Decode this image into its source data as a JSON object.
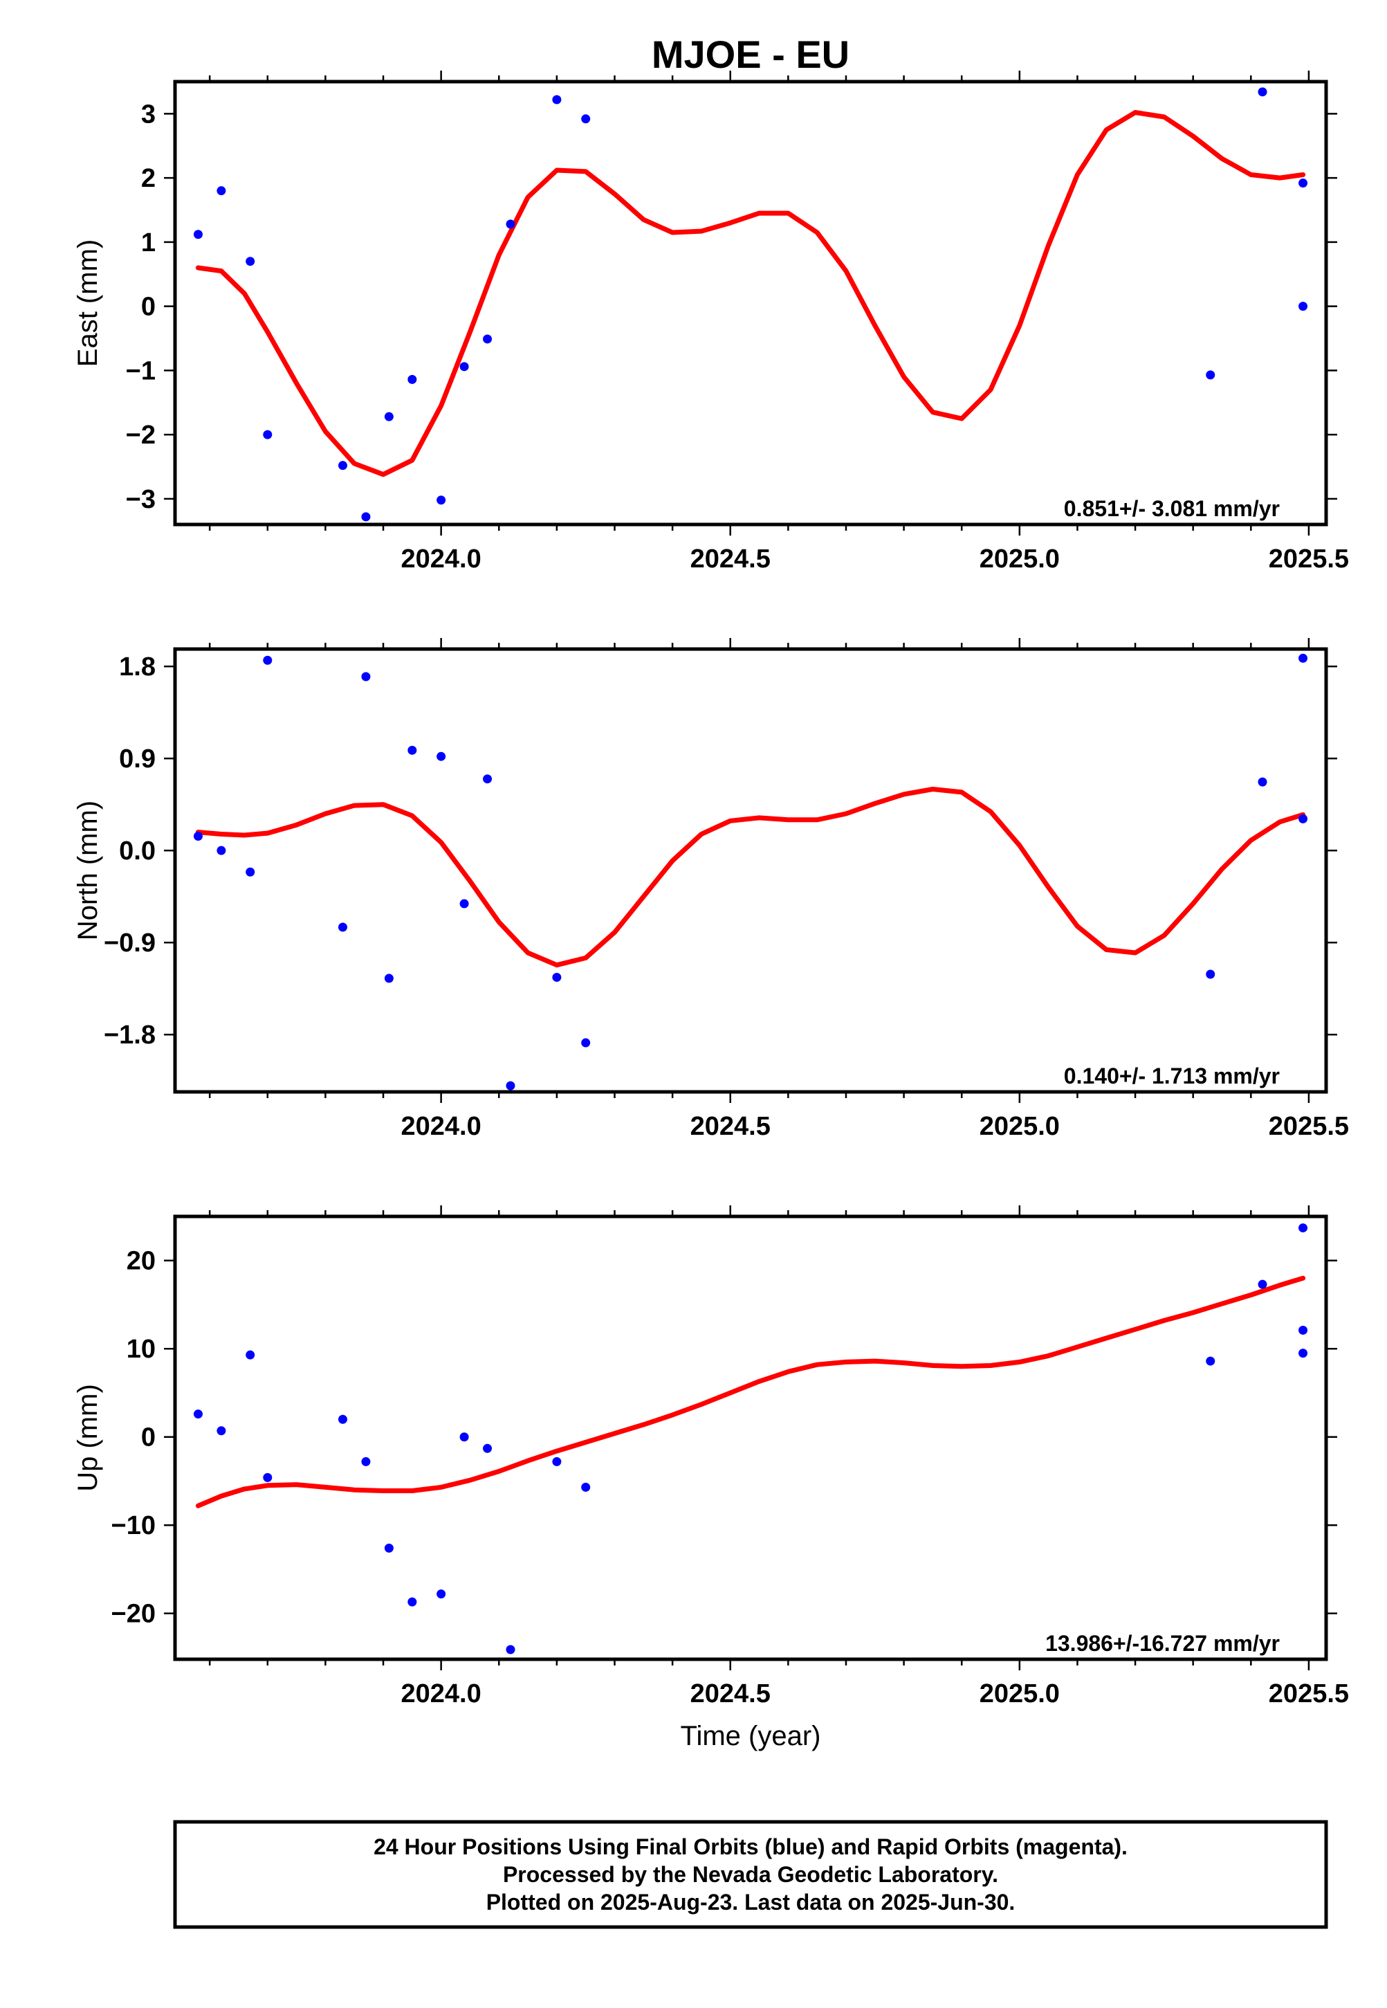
{
  "title": "MJOE - EU",
  "xlabel": "Time (year)",
  "x_tick_labels": [
    "2024.0",
    "2024.5",
    "2025.0",
    "2025.5"
  ],
  "footnote": [
    "24 Hour Positions Using Final Orbits (blue) and Rapid Orbits (magenta).",
    "Processed by the Nevada Geodetic Laboratory.",
    "Plotted on 2025-Aug-23. Last data on 2025-Jun-30."
  ],
  "colors": {
    "points": "#0000ff",
    "fit": "#ff0000",
    "frame": "#000000"
  },
  "chart_data": [
    {
      "type": "scatter",
      "ylabel": "East (mm)",
      "rate": "0.851+/- 3.081 mm/yr",
      "xlim": [
        2023.54,
        2025.53
      ],
      "ylim": [
        -3.4,
        3.5
      ],
      "yticks": [
        -3,
        -2,
        -1,
        0,
        1,
        2,
        3
      ],
      "ytick_labels": [
        "−3",
        "−2",
        "−1",
        "0",
        "1",
        "2",
        "3"
      ],
      "series": [
        {
          "type": "scatter",
          "x": [
            2023.58,
            2023.62,
            2023.67,
            2023.7,
            2023.83,
            2023.87,
            2023.91,
            2023.95,
            2024.0,
            2024.04,
            2024.08,
            2024.12,
            2024.2,
            2024.25,
            2025.33,
            2025.42,
            2025.49,
            2025.49
          ],
          "y": [
            1.12,
            1.8,
            0.7,
            -2.0,
            -2.48,
            -3.28,
            -1.72,
            -1.14,
            -3.02,
            -0.94,
            -0.51,
            1.28,
            3.22,
            2.92,
            -1.07,
            3.34,
            1.92,
            0.0
          ]
        },
        {
          "type": "line",
          "x": [
            2023.58,
            2023.62,
            2023.66,
            2023.7,
            2023.75,
            2023.8,
            2023.85,
            2023.9,
            2023.95,
            2024.0,
            2024.05,
            2024.1,
            2024.15,
            2024.2,
            2024.25,
            2024.3,
            2024.35,
            2024.4,
            2024.45,
            2024.5,
            2024.55,
            2024.6,
            2024.65,
            2024.7,
            2024.75,
            2024.8,
            2024.85,
            2024.9,
            2024.95,
            2025.0,
            2025.05,
            2025.1,
            2025.15,
            2025.2,
            2025.25,
            2025.3,
            2025.35,
            2025.4,
            2025.45,
            2025.49
          ],
          "y": [
            0.6,
            0.55,
            0.2,
            -0.4,
            -1.2,
            -1.95,
            -2.45,
            -2.62,
            -2.4,
            -1.55,
            -0.4,
            0.8,
            1.7,
            2.12,
            2.1,
            1.75,
            1.35,
            1.15,
            1.17,
            1.3,
            1.45,
            1.45,
            1.15,
            0.55,
            -0.3,
            -1.1,
            -1.65,
            -1.75,
            -1.3,
            -0.3,
            0.95,
            2.05,
            2.75,
            3.02,
            2.95,
            2.65,
            2.3,
            2.05,
            2.0,
            2.05
          ]
        }
      ]
    },
    {
      "type": "scatter",
      "ylabel": "North (mm)",
      "rate": "0.140+/- 1.713 mm/yr",
      "xlim": [
        2023.54,
        2025.53
      ],
      "ylim": [
        -2.36,
        1.97
      ],
      "yticks": [
        -1.8,
        -0.9,
        0.0,
        0.9,
        1.8
      ],
      "ytick_labels": [
        "−1.8",
        "−0.9",
        "0.0",
        "0.9",
        "1.8"
      ],
      "series": [
        {
          "type": "scatter",
          "x": [
            2023.58,
            2023.62,
            2023.67,
            2023.7,
            2023.83,
            2023.87,
            2023.91,
            2023.95,
            2024.0,
            2024.04,
            2024.08,
            2024.12,
            2024.2,
            2024.25,
            2025.33,
            2025.42,
            2025.49,
            2025.49
          ],
          "y": [
            0.14,
            0.0,
            -0.21,
            1.86,
            -0.75,
            1.7,
            -1.25,
            0.98,
            0.92,
            -0.52,
            0.7,
            -2.3,
            -1.24,
            -1.88,
            -1.21,
            0.67,
            1.88,
            0.31
          ]
        },
        {
          "type": "line",
          "x": [
            2023.58,
            2023.62,
            2023.66,
            2023.7,
            2023.75,
            2023.8,
            2023.85,
            2023.9,
            2023.95,
            2024.0,
            2024.05,
            2024.1,
            2024.15,
            2024.2,
            2024.25,
            2024.3,
            2024.35,
            2024.4,
            2024.45,
            2024.5,
            2024.55,
            2024.6,
            2024.65,
            2024.7,
            2024.75,
            2024.8,
            2024.85,
            2024.9,
            2024.95,
            2025.0,
            2025.05,
            2025.1,
            2025.15,
            2025.2,
            2025.25,
            2025.3,
            2025.35,
            2025.4,
            2025.45,
            2025.49
          ],
          "y": [
            0.18,
            0.16,
            0.15,
            0.17,
            0.25,
            0.36,
            0.44,
            0.45,
            0.34,
            0.08,
            -0.3,
            -0.7,
            -1.0,
            -1.12,
            -1.05,
            -0.8,
            -0.45,
            -0.1,
            0.16,
            0.29,
            0.32,
            0.3,
            0.3,
            0.36,
            0.46,
            0.55,
            0.6,
            0.57,
            0.38,
            0.05,
            -0.36,
            -0.74,
            -0.97,
            -1.0,
            -0.83,
            -0.52,
            -0.18,
            0.1,
            0.28,
            0.35
          ]
        }
      ]
    },
    {
      "type": "scatter",
      "ylabel": "Up (mm)",
      "rate": "13.986+/-16.727 mm/yr",
      "xlim": [
        2023.54,
        2025.53
      ],
      "ylim": [
        -25.2,
        25.0
      ],
      "yticks": [
        -20,
        -10,
        0,
        10,
        20
      ],
      "ytick_labels": [
        "−20",
        "−10",
        "0",
        "10",
        "20"
      ],
      "series": [
        {
          "type": "scatter",
          "x": [
            2023.58,
            2023.62,
            2023.67,
            2023.7,
            2023.83,
            2023.87,
            2023.91,
            2023.95,
            2024.0,
            2024.04,
            2024.08,
            2024.12,
            2024.2,
            2024.25,
            2025.33,
            2025.42,
            2025.49,
            2025.49,
            2025.49
          ],
          "y": [
            2.6,
            0.7,
            9.3,
            -4.6,
            2.0,
            -2.8,
            -12.6,
            -18.7,
            -17.8,
            0.0,
            -1.3,
            -24.1,
            -2.8,
            -5.7,
            8.6,
            17.3,
            23.7,
            12.1,
            9.5
          ]
        },
        {
          "type": "line",
          "x": [
            2023.58,
            2023.62,
            2023.66,
            2023.7,
            2023.75,
            2023.8,
            2023.85,
            2023.9,
            2023.95,
            2024.0,
            2024.05,
            2024.1,
            2024.15,
            2024.2,
            2024.25,
            2024.3,
            2024.35,
            2024.4,
            2024.45,
            2024.5,
            2024.55,
            2024.6,
            2024.65,
            2024.7,
            2024.75,
            2024.8,
            2024.85,
            2024.9,
            2024.95,
            2025.0,
            2025.05,
            2025.1,
            2025.15,
            2025.2,
            2025.25,
            2025.3,
            2025.35,
            2025.4,
            2025.45,
            2025.49
          ],
          "y": [
            -7.8,
            -6.7,
            -5.9,
            -5.5,
            -5.4,
            -5.7,
            -6.0,
            -6.1,
            -6.1,
            -5.7,
            -4.9,
            -3.9,
            -2.7,
            -1.6,
            -0.6,
            0.4,
            1.4,
            2.5,
            3.7,
            5.0,
            6.3,
            7.4,
            8.2,
            8.5,
            8.6,
            8.4,
            8.1,
            8.0,
            8.1,
            8.5,
            9.2,
            10.2,
            11.2,
            12.2,
            13.2,
            14.1,
            15.1,
            16.1,
            17.2,
            18.0
          ]
        }
      ]
    }
  ]
}
